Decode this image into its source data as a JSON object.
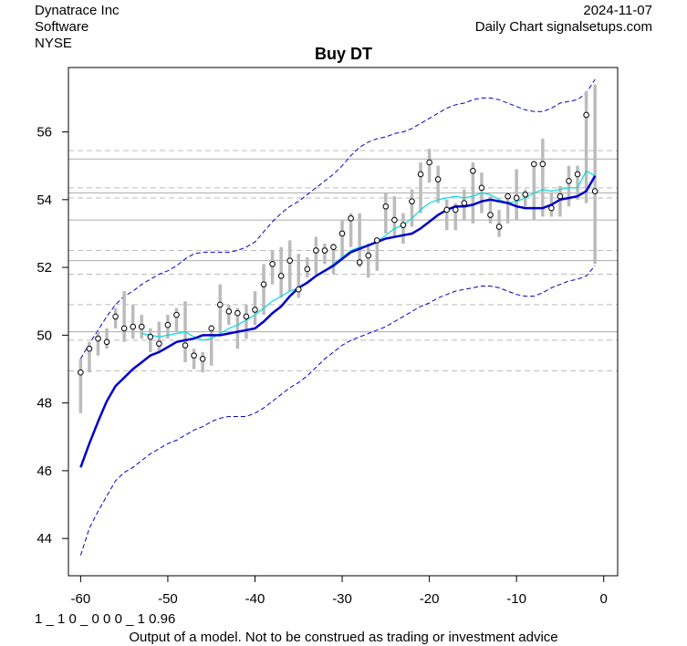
{
  "header": {
    "company": "Dynatrace Inc",
    "sector": "Software",
    "exchange": "NYSE",
    "date": "2024-11-07",
    "source": "Daily Chart signalsetups.com"
  },
  "footer": {
    "code": "1 _ 1 0 _ 0 0 0 _ 1 0.96",
    "disclaimer": "Output of a model. Not to be construed as trading or investment advice"
  },
  "chart_data": {
    "type": "line",
    "title": "Buy DT",
    "xlabel": "",
    "ylabel": "",
    "xlim": [
      -61.4,
      1.6
    ],
    "ylim": [
      42.9,
      57.9
    ],
    "x_ticks": [
      -60,
      -50,
      -40,
      -30,
      -20,
      -10,
      0
    ],
    "y_ticks": [
      44,
      46,
      48,
      50,
      52,
      54,
      56
    ],
    "colors": {
      "range_bar": "#bbbbbb",
      "close_point": "#000000",
      "slow_ma": "#0000cc",
      "fast_ma": "#00dddd",
      "band": "#0000cc",
      "solid_level": "#aaaaaa",
      "dashed_level": "#bbbbbb"
    },
    "levels_solid": [
      55.2,
      54.2,
      53.4,
      52.2,
      50.1
    ],
    "levels_dashed": [
      55.45,
      54.35,
      54.05,
      52.5,
      51.8,
      50.9,
      49.85,
      48.95
    ],
    "series": [
      {
        "name": "range",
        "x": [
          -60,
          -59,
          -58,
          -57,
          -56,
          -55,
          -54,
          -53,
          -52,
          -51,
          -50,
          -49,
          -48,
          -47,
          -46,
          -45,
          -44,
          -43,
          -42,
          -41,
          -40,
          -39,
          -38,
          -37,
          -36,
          -35,
          -34,
          -33,
          -32,
          -31,
          -30,
          -29,
          -28,
          -27,
          -26,
          -25,
          -24,
          -23,
          -22,
          -21,
          -20,
          -19,
          -18,
          -17,
          -16,
          -15,
          -14,
          -13,
          -12,
          -11,
          -10,
          -9,
          -8,
          -7,
          -6,
          -5,
          -4,
          -3,
          -2,
          -1
        ],
        "low": [
          47.7,
          48.9,
          49.4,
          49.6,
          50.2,
          49.8,
          49.9,
          49.9,
          49.5,
          49.5,
          49.9,
          50.1,
          49.2,
          49.0,
          48.9,
          49.1,
          50.0,
          50.3,
          49.6,
          49.9,
          50.3,
          50.6,
          51.5,
          51.1,
          51.3,
          51.1,
          51.7,
          51.8,
          52.1,
          51.8,
          52.3,
          52.6,
          52.0,
          51.7,
          51.9,
          53.0,
          52.9,
          52.7,
          53.2,
          53.6,
          54.5,
          53.9,
          53.1,
          53.1,
          53.4,
          53.3,
          53.6,
          53.3,
          52.9,
          53.3,
          53.4,
          53.8,
          53.4,
          53.5,
          53.5,
          53.5,
          53.8,
          54.0,
          53.9,
          52.1
        ],
        "high": [
          49.3,
          49.8,
          50.1,
          50.2,
          50.8,
          51.3,
          50.9,
          50.6,
          50.2,
          50.4,
          50.6,
          50.8,
          51.0,
          49.6,
          49.5,
          50.3,
          51.5,
          50.9,
          50.8,
          50.9,
          51.3,
          52.1,
          52.5,
          52.6,
          52.8,
          52.4,
          52.3,
          52.9,
          52.7,
          52.7,
          53.4,
          53.6,
          53.6,
          52.7,
          52.8,
          54.2,
          54.1,
          53.6,
          54.3,
          55.1,
          55.5,
          55.0,
          54.0,
          53.9,
          54.3,
          55.1,
          54.8,
          54.1,
          53.7,
          54.2,
          54.9,
          54.3,
          55.1,
          55.8,
          54.2,
          54.4,
          55.0,
          55.0,
          57.2,
          57.4
        ]
      },
      {
        "name": "close",
        "x": [
          -60,
          -59,
          -58,
          -57,
          -56,
          -55,
          -54,
          -53,
          -52,
          -51,
          -50,
          -49,
          -48,
          -47,
          -46,
          -45,
          -44,
          -43,
          -42,
          -41,
          -40,
          -39,
          -38,
          -37,
          -36,
          -35,
          -34,
          -33,
          -32,
          -31,
          -30,
          -29,
          -28,
          -27,
          -26,
          -25,
          -24,
          -23,
          -22,
          -21,
          -20,
          -19,
          -18,
          -17,
          -16,
          -15,
          -14,
          -13,
          -12,
          -11,
          -10,
          -9,
          -8,
          -7,
          -6,
          -5,
          -4,
          -3,
          -2,
          -1
        ],
        "y": [
          48.9,
          49.6,
          49.9,
          49.8,
          50.55,
          50.2,
          50.25,
          50.25,
          49.95,
          49.75,
          50.3,
          50.6,
          49.7,
          49.4,
          49.3,
          50.2,
          50.9,
          50.7,
          50.65,
          50.55,
          50.75,
          51.5,
          52.1,
          51.75,
          52.2,
          51.35,
          51.95,
          52.5,
          52.5,
          52.6,
          53.0,
          53.45,
          52.15,
          52.35,
          52.8,
          53.8,
          53.4,
          53.25,
          53.95,
          54.75,
          55.1,
          54.6,
          53.7,
          53.7,
          53.9,
          54.85,
          54.35,
          53.55,
          53.2,
          54.1,
          54.05,
          54.15,
          55.05,
          55.05,
          53.75,
          54.1,
          54.55,
          54.75,
          56.5,
          54.25
        ]
      },
      {
        "name": "slow MA",
        "x": [
          -60,
          -59,
          -58,
          -57,
          -56,
          -55,
          -54,
          -53,
          -52,
          -51,
          -50,
          -49,
          -48,
          -47,
          -46,
          -45,
          -44,
          -43,
          -42,
          -41,
          -40,
          -39,
          -38,
          -37,
          -36,
          -35,
          -34,
          -33,
          -32,
          -31,
          -30,
          -29,
          -28,
          -27,
          -26,
          -25,
          -24,
          -23,
          -22,
          -21,
          -20,
          -19,
          -18,
          -17,
          -16,
          -15,
          -14,
          -13,
          -12,
          -11,
          -10,
          -9,
          -8,
          -7,
          -6,
          -5,
          -4,
          -3,
          -2,
          -1
        ],
        "y": [
          46.1,
          46.8,
          47.45,
          48.05,
          48.5,
          48.75,
          49.0,
          49.2,
          49.4,
          49.5,
          49.65,
          49.8,
          49.85,
          49.9,
          50.0,
          50.0,
          50.0,
          50.05,
          50.1,
          50.15,
          50.2,
          50.4,
          50.65,
          50.85,
          51.15,
          51.4,
          51.55,
          51.75,
          51.9,
          52.05,
          52.25,
          52.45,
          52.55,
          52.65,
          52.75,
          52.85,
          52.9,
          52.95,
          53.0,
          53.15,
          53.35,
          53.55,
          53.7,
          53.8,
          53.8,
          53.85,
          53.95,
          54.0,
          53.95,
          53.9,
          53.8,
          53.75,
          53.75,
          53.75,
          53.85,
          54.0,
          54.05,
          54.1,
          54.25,
          54.7
        ]
      },
      {
        "name": "fast MA",
        "x": [
          -53,
          -52,
          -51,
          -50,
          -49,
          -48,
          -47,
          -46,
          -45,
          -44,
          -43,
          -42,
          -41,
          -40,
          -39,
          -38,
          -37,
          -36,
          -35,
          -34,
          -33,
          -32,
          -31,
          -30,
          -29,
          -28,
          -27,
          -26,
          -25,
          -24,
          -23,
          -22,
          -21,
          -20,
          -19,
          -18,
          -17,
          -16,
          -15,
          -14,
          -13,
          -12,
          -11,
          -10,
          -9,
          -8,
          -7,
          -6,
          -5,
          -4,
          -3,
          -2,
          -1
        ],
        "y": [
          50.05,
          50.0,
          49.95,
          50.0,
          50.05,
          50.1,
          49.95,
          49.85,
          49.9,
          50.05,
          50.2,
          50.3,
          50.45,
          50.6,
          50.8,
          51.0,
          51.15,
          51.3,
          51.4,
          51.55,
          51.75,
          51.9,
          52.1,
          52.3,
          52.5,
          52.6,
          52.65,
          52.75,
          52.95,
          53.15,
          53.25,
          53.45,
          53.7,
          53.9,
          54.0,
          54.05,
          54.1,
          54.05,
          54.1,
          54.2,
          54.15,
          54.0,
          53.9,
          53.95,
          54.05,
          54.2,
          54.3,
          54.25,
          54.3,
          54.35,
          54.35,
          54.85,
          54.7
        ]
      },
      {
        "name": "upper band",
        "x": [
          -60,
          -59,
          -58,
          -57,
          -56,
          -55,
          -54,
          -53,
          -52,
          -51,
          -50,
          -49,
          -48,
          -47,
          -46,
          -45,
          -44,
          -43,
          -42,
          -41,
          -40,
          -39,
          -38,
          -37,
          -36,
          -35,
          -34,
          -33,
          -32,
          -31,
          -30,
          -29,
          -28,
          -27,
          -26,
          -25,
          -24,
          -23,
          -22,
          -21,
          -20,
          -19,
          -18,
          -17,
          -16,
          -15,
          -14,
          -13,
          -12,
          -11,
          -10,
          -9,
          -8,
          -7,
          -6,
          -5,
          -4,
          -3,
          -2,
          -1
        ],
        "y": [
          49.3,
          49.75,
          50.15,
          50.55,
          50.9,
          51.15,
          51.3,
          51.5,
          51.65,
          51.8,
          51.9,
          52.05,
          52.25,
          52.4,
          52.45,
          52.45,
          52.45,
          52.45,
          52.5,
          52.6,
          52.75,
          53.05,
          53.35,
          53.6,
          53.8,
          53.95,
          54.15,
          54.35,
          54.55,
          54.75,
          55.0,
          55.3,
          55.55,
          55.7,
          55.8,
          55.85,
          55.95,
          56.0,
          56.1,
          56.25,
          56.4,
          56.55,
          56.7,
          56.8,
          56.85,
          56.95,
          57.0,
          57.0,
          56.95,
          56.85,
          56.75,
          56.65,
          56.6,
          56.6,
          56.7,
          56.85,
          56.9,
          56.95,
          57.15,
          57.55
        ]
      },
      {
        "name": "lower band",
        "x": [
          -60,
          -59,
          -58,
          -57,
          -56,
          -55,
          -54,
          -53,
          -52,
          -51,
          -50,
          -49,
          -48,
          -47,
          -46,
          -45,
          -44,
          -43,
          -42,
          -41,
          -40,
          -39,
          -38,
          -37,
          -36,
          -35,
          -34,
          -33,
          -32,
          -31,
          -30,
          -29,
          -28,
          -27,
          -26,
          -25,
          -24,
          -23,
          -22,
          -21,
          -20,
          -19,
          -18,
          -17,
          -16,
          -15,
          -14,
          -13,
          -12,
          -11,
          -10,
          -9,
          -8,
          -7,
          -6,
          -5,
          -4,
          -3,
          -2,
          -1
        ],
        "y": [
          43.5,
          44.3,
          44.8,
          45.25,
          45.7,
          45.95,
          46.1,
          46.3,
          46.5,
          46.65,
          46.8,
          46.9,
          47.05,
          47.2,
          47.3,
          47.45,
          47.55,
          47.6,
          47.6,
          47.6,
          47.7,
          47.85,
          48.05,
          48.25,
          48.45,
          48.6,
          48.8,
          49.05,
          49.3,
          49.5,
          49.7,
          49.85,
          49.95,
          50.05,
          50.15,
          50.25,
          50.4,
          50.55,
          50.7,
          50.85,
          50.95,
          51.1,
          51.2,
          51.3,
          51.35,
          51.4,
          51.45,
          51.45,
          51.4,
          51.3,
          51.2,
          51.15,
          51.15,
          51.25,
          51.4,
          51.5,
          51.6,
          51.65,
          51.75,
          52.05
        ]
      }
    ]
  }
}
